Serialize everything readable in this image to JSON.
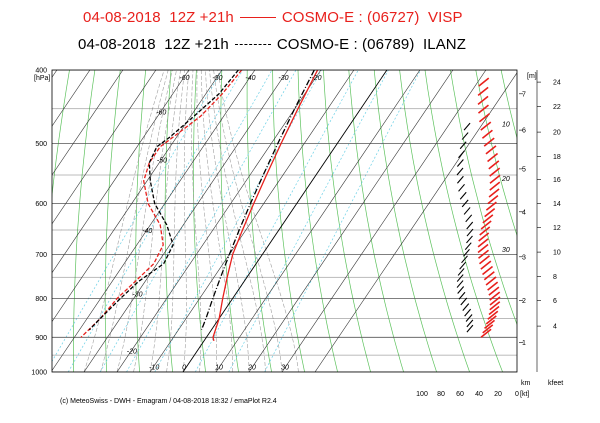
{
  "header": {
    "line1_left": "04-08-2018  12Z +21h",
    "line1_right": "COSMO-E : (06727)  VISP",
    "line2_left": "04-08-2018  12Z +21h",
    "line2_right": "COSMO-E : (06789)  ILANZ"
  },
  "footer": {
    "copyright": "(c) MeteoSwiss - DWH - Emagram / 04-08-2018  18:32 / emaPlot R2.4"
  },
  "chart_data": {
    "type": "line",
    "title": "",
    "ylabel": "[hPa]",
    "yscale": "log",
    "ylim": [
      400,
      1000
    ],
    "p_ticks": [
      400,
      500,
      600,
      700,
      800,
      900,
      1000
    ],
    "temp_labels": [
      {
        "t": -60,
        "p": 410
      },
      {
        "t": -50,
        "p": 410
      },
      {
        "t": -40,
        "p": 410
      },
      {
        "t": -30,
        "p": 410
      },
      {
        "t": -20,
        "p": 410
      },
      {
        "t": -60,
        "p": 455
      },
      {
        "t": -50,
        "p": 526
      },
      {
        "t": -40,
        "p": 652
      },
      {
        "t": -30,
        "p": 790
      },
      {
        "t": -20,
        "p": 940
      },
      {
        "t": -10,
        "p": 986
      },
      {
        "t": 0,
        "p": 986
      },
      {
        "t": 10,
        "p": 986
      },
      {
        "t": 20,
        "p": 986
      },
      {
        "t": 30,
        "p": 986
      }
    ],
    "right_axis_label": "[m]",
    "height_km_ticks": [
      {
        "label": "7",
        "p": 430
      },
      {
        "label": "6",
        "p": 480
      },
      {
        "label": "5",
        "p": 540
      },
      {
        "label": "4",
        "p": 615
      },
      {
        "label": "3",
        "p": 705
      },
      {
        "label": "2",
        "p": 805
      },
      {
        "label": "1",
        "p": 915
      }
    ],
    "height_kfeet_ticks": [
      {
        "label": "24",
        "p": 415
      },
      {
        "label": "22",
        "p": 447
      },
      {
        "label": "20",
        "p": 483
      },
      {
        "label": "18",
        "p": 520
      },
      {
        "label": "16",
        "p": 558
      },
      {
        "label": "14",
        "p": 600
      },
      {
        "label": "12",
        "p": 645
      },
      {
        "label": "10",
        "p": 695
      },
      {
        "label": "8",
        "p": 748
      },
      {
        "label": "6",
        "p": 805
      },
      {
        "label": "4",
        "p": 870
      }
    ],
    "right_bottom_labels": [
      "km",
      "kfeet"
    ],
    "wind_axis_label": "[kt]",
    "wind_ticks": [
      "100",
      "80",
      "60",
      "40",
      "20",
      "0"
    ],
    "inner_labels": [
      {
        "text": "10",
        "p": 475
      },
      {
        "text": "20",
        "p": 560
      },
      {
        "text": "30",
        "p": 695
      }
    ],
    "series": [
      {
        "name": "VISP",
        "color": "#e8201c",
        "style": "solid",
        "kind": "temperature",
        "p": [
          400,
          450,
          500,
          550,
          600,
          650,
          700,
          750,
          800,
          850,
          900,
          910
        ],
        "t": [
          -21,
          -19,
          -17,
          -15,
          -13,
          -11,
          -9,
          -6,
          -3,
          0,
          2,
          3
        ]
      },
      {
        "name": "VISP",
        "color": "#e8201c",
        "style": "dashed",
        "kind": "dewpoint",
        "p": [
          400,
          430,
          460,
          490,
          505,
          530,
          560,
          600,
          640,
          680,
          720,
          760,
          800,
          850,
          900
        ],
        "t": [
          -44,
          -45,
          -47,
          -51,
          -53,
          -53,
          -51,
          -45,
          -37,
          -32,
          -31,
          -33,
          -35,
          -36,
          -38
        ]
      },
      {
        "name": "ILANZ",
        "color": "#000000",
        "style": "dashdot",
        "kind": "temperature",
        "p": [
          400,
          450,
          500,
          550,
          600,
          650,
          700,
          750,
          800,
          850,
          880
        ],
        "t": [
          -22,
          -20,
          -18,
          -16,
          -14,
          -12,
          -10,
          -8,
          -6,
          -4,
          -3
        ]
      },
      {
        "name": "ILANZ",
        "color": "#000000",
        "style": "dashed",
        "kind": "dewpoint",
        "p": [
          400,
          430,
          460,
          490,
          505,
          530,
          560,
          600,
          640,
          680,
          720,
          760,
          800,
          850,
          880
        ],
        "t": [
          -45,
          -46,
          -49,
          -52,
          -54,
          -53,
          -49,
          -43,
          -35,
          -29,
          -28,
          -32,
          -34,
          -36,
          -37
        ]
      }
    ],
    "grid": true
  }
}
